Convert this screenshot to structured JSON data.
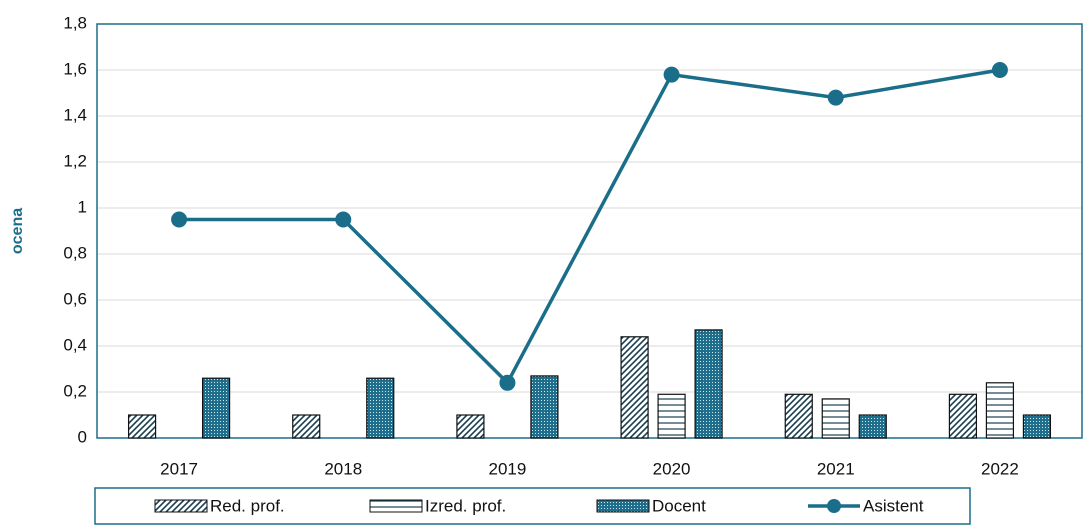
{
  "chart_data": {
    "type": "bar",
    "y_label": "ocena",
    "categories": [
      "2017",
      "2018",
      "2019",
      "2020",
      "2021",
      "2022"
    ],
    "series": [
      {
        "name": "Red. prof.",
        "type": "bar",
        "pattern": "diagonal",
        "color": "#1b3f4f",
        "values": [
          0.1,
          0.1,
          0.1,
          0.44,
          0.19,
          0.19
        ]
      },
      {
        "name": "Izred. prof.",
        "type": "bar",
        "pattern": "horizontal",
        "color": "#1b3f4f",
        "values": [
          null,
          null,
          null,
          0.19,
          0.17,
          0.24
        ]
      },
      {
        "name": "Docent",
        "type": "bar",
        "pattern": "dots",
        "color": "#1f6e8c",
        "values": [
          0.26,
          0.26,
          0.27,
          0.47,
          0.1,
          0.1
        ]
      },
      {
        "name": "Asistent",
        "type": "line",
        "color": "#1a6e8a",
        "values": [
          0.95,
          0.95,
          0.24,
          1.58,
          1.48,
          1.6
        ]
      }
    ],
    "ylim": [
      0,
      1.8
    ],
    "yticks": [
      0,
      {
        "value": 0.2,
        "label": "0,2"
      },
      {
        "value": 0.4,
        "label": "0,4"
      },
      {
        "value": 0.6,
        "label": "0,6"
      },
      {
        "value": 0.8,
        "label": "0,8"
      },
      1,
      {
        "value": 1.2,
        "label": "1,2"
      },
      {
        "value": 1.4,
        "label": "1,4"
      },
      {
        "value": 1.6,
        "label": "1,6"
      },
      {
        "value": 1.8,
        "label": "1,8"
      }
    ],
    "grid": true,
    "legend": "bottom"
  }
}
